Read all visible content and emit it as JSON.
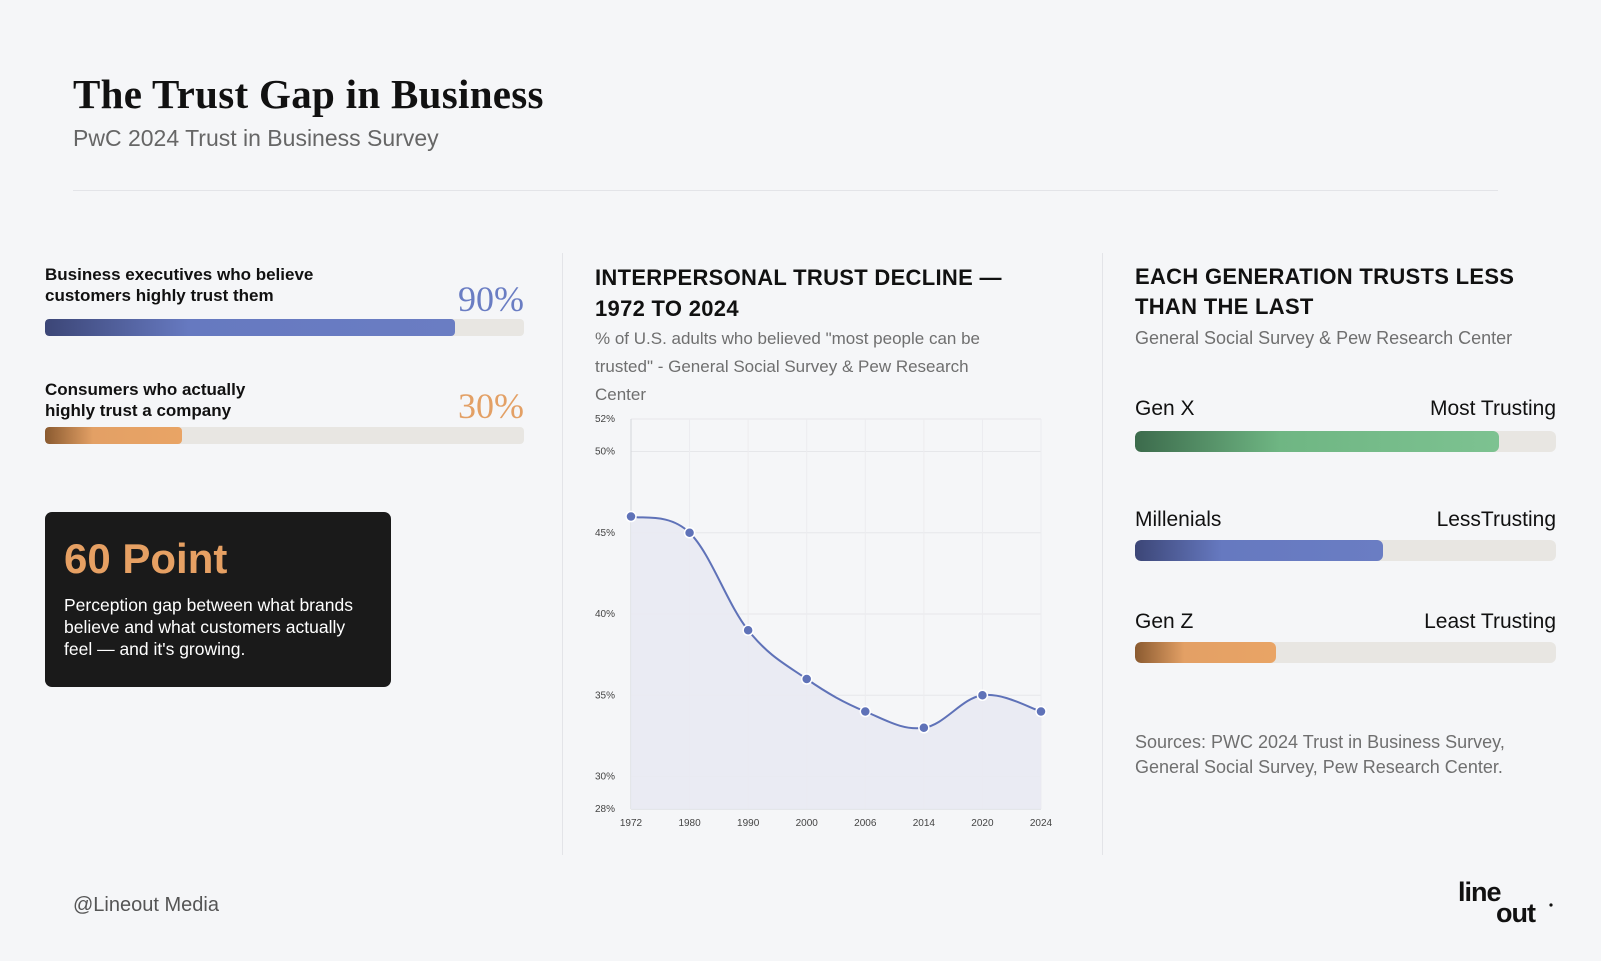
{
  "header": {
    "title": "The Trust Gap in Business",
    "subtitle": "PwC 2024 Trust in Business Survey"
  },
  "left": {
    "metrics": [
      {
        "label": "Business executives who believe customers highly trust them",
        "value_text": "90%",
        "value": 90,
        "color": "#6a7dc3"
      },
      {
        "label": "Consumers who actually highly trust a company",
        "value_text": "30%",
        "value": 30,
        "color": "#e3a065"
      }
    ],
    "callout": {
      "headline": "60 Point",
      "text": "Perception gap between what brands believe and what customers actually feel — and it's growing."
    }
  },
  "middle": {
    "title": "INTERPERSONAL TRUST DECLINE — 1972 TO 2024",
    "subtitle": "% of U.S. adults who believed \"most people can be trusted\" - General Social Survey & Pew Research Center"
  },
  "chart_data": {
    "type": "line",
    "x": [
      "1972",
      "1980",
      "1990",
      "2000",
      "2006",
      "2014",
      "2020",
      "2024"
    ],
    "series": [
      {
        "values": [
          46,
          45,
          39,
          36,
          34,
          33,
          35,
          34
        ]
      }
    ],
    "y_ticks": [
      "28%",
      "30%",
      "35%",
      "40%",
      "45%",
      "50%",
      "52%"
    ],
    "y_tick_values": [
      28,
      30,
      35,
      40,
      45,
      50,
      52
    ],
    "ylim": [
      28,
      52
    ],
    "grid": true,
    "area_fill": true,
    "line_color": "#5f72b8"
  },
  "right": {
    "title": "EACH GENERATION TRUSTS LESS THAN THE LAST",
    "subtitle": "General Social Survey & Pew Research Center",
    "generations": [
      {
        "name": "Gen X",
        "descriptor": "Most Trusting",
        "level": 0.865,
        "color": "#7dc291"
      },
      {
        "name": "Millenials",
        "descriptor": "LessTrusting",
        "level": 0.59,
        "color": "#6a7dc3"
      },
      {
        "name": "Gen Z",
        "descriptor": "Least Trusting",
        "level": 0.335,
        "color": "#e9a465"
      }
    ],
    "sources": "Sources: PWC 2024 Trust in Business Survey, General Social Survey, Pew Research Center."
  },
  "footer": {
    "handle": "@Lineout Media",
    "logo_line1": "line",
    "logo_line2": "out"
  }
}
